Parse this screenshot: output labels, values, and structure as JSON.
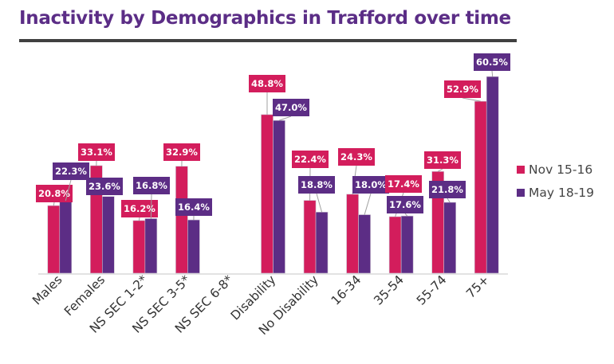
{
  "chart_data": {
    "type": "bar",
    "title": "Inactivity by Demographics in Trafford over time",
    "categories": [
      "Males",
      "Females",
      "NS SEC 1-2*",
      "NS SEC 3-5*",
      "NS SEC 6-8*",
      "Disability",
      "No Disability",
      "16-34",
      "35-54",
      "55-74",
      "75+"
    ],
    "series": [
      {
        "name": "Nov 15-16",
        "color": "#d31d5c",
        "values": [
          20.8,
          33.1,
          16.2,
          32.9,
          null,
          48.8,
          22.4,
          24.3,
          17.4,
          31.3,
          52.9
        ],
        "labels": [
          "20.8%",
          "33.1%",
          "16.2%",
          "32.9%",
          null,
          "48.8%",
          "22.4%",
          "24.3%",
          "17.4%",
          "31.3%",
          "52.9%"
        ]
      },
      {
        "name": "May 18-19",
        "color": "#5c2d85",
        "values": [
          22.3,
          23.6,
          16.8,
          16.4,
          null,
          47.0,
          18.8,
          18.0,
          17.6,
          21.8,
          60.5
        ],
        "labels": [
          "22.3%",
          "23.6%",
          "16.8%",
          "16.4%",
          null,
          "47.0%",
          "18.8%",
          "18.0%",
          "17.6%",
          "21.8%",
          "60.5%"
        ]
      }
    ],
    "xlabel": "",
    "ylabel": "",
    "ylim": [
      0,
      62
    ],
    "grid": false,
    "legend": "right"
  }
}
